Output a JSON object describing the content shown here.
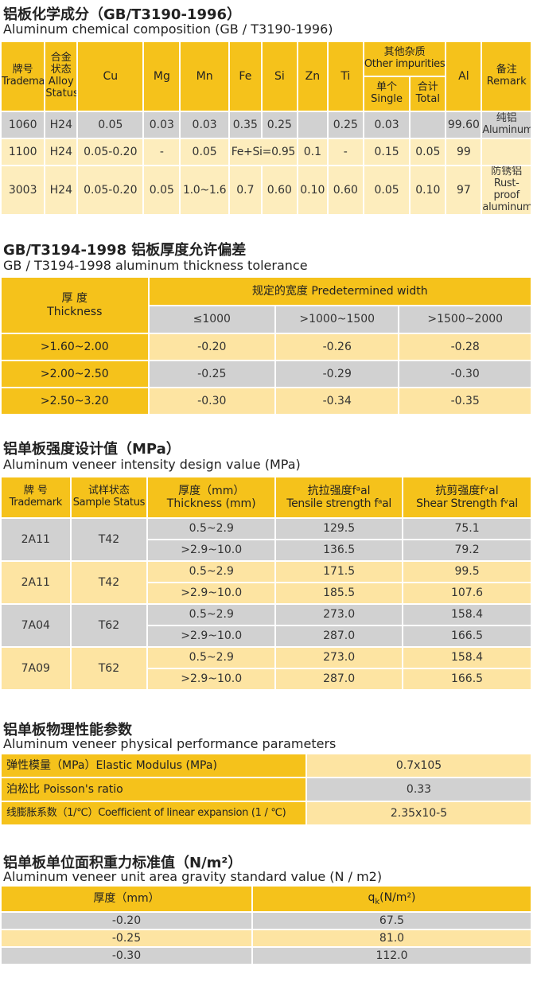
{
  "s1": {
    "title": "铝板化学成分（GB/T3190-1996）",
    "subtitle": "Aluminum chemical composition (GB / T3190-1996)",
    "h": {
      "trademark_cn": "牌号",
      "trademark_en": "Trademark",
      "alloy_cn": "合金状态",
      "alloy_en": "Alloy Status",
      "cu": "Cu",
      "mg": "Mg",
      "mn": "Mn",
      "fe": "Fe",
      "si": "Si",
      "zn": "Zn",
      "ti": "Ti",
      "other_cn": "其他杂质",
      "other_en": "Other impurities",
      "single_cn": "单个",
      "single_en": "Single",
      "total_cn": "合计",
      "total_en": "Total",
      "al": "Al",
      "remark_cn": "备注",
      "remark_en": "Remark"
    },
    "rows": [
      {
        "trademark": "1060",
        "status": "H24",
        "cu": "0.05",
        "mg": "0.03",
        "mn": "0.03",
        "fe": "0.35",
        "si": "0.25",
        "zn": "",
        "ti": "0.25",
        "single": "0.03",
        "total": "",
        "al": "99.60",
        "remark_cn": "纯铝",
        "remark_en": "Aluminum"
      },
      {
        "trademark": "1100",
        "status": "H24",
        "cu": "0.05-0.20",
        "mg": "-",
        "mn": "0.05",
        "fesi": "Fe+Si=0.95",
        "zn": "0.1",
        "ti": "-",
        "single": "0.15",
        "total": "0.05",
        "al": "99"
      },
      {
        "trademark": "3003",
        "status": "H24",
        "cu": "0.05-0.20",
        "mg": "0.05",
        "mn": "1.0~1.6",
        "fe": "0.7",
        "si": "0.60",
        "zn": "0.10",
        "ti": "0.60",
        "single": "0.05",
        "total": "0.10",
        "al": "97",
        "remark_cn": "防锈铝",
        "remark_en": "Rust-proof aluminum"
      }
    ]
  },
  "s2": {
    "title": "GB/T3194-1998 铝板厚度允许偏差",
    "subtitle": "GB / T3194-1998 aluminum thickness tolerance",
    "h": {
      "thickness_cn": "厚  度",
      "thickness_en": "Thickness",
      "width": "规定的宽度 Predetermined width",
      "w1": "≤1000",
      "w2": ">1000~1500",
      "w3": ">1500~2000"
    },
    "rows": [
      {
        "range": ">1.60~2.00",
        "v1": "-0.20",
        "v2": "-0.26",
        "v3": "-0.28"
      },
      {
        "range": ">2.00~2.50",
        "v1": "-0.25",
        "v2": "-0.29",
        "v3": "-0.30"
      },
      {
        "range": ">2.50~3.20",
        "v1": "-0.30",
        "v2": "-0.34",
        "v3": "-0.35"
      }
    ]
  },
  "s3": {
    "title": "铝单板强度设计值（MPa）",
    "subtitle": "Aluminum veneer intensity design value (MPa)",
    "h": {
      "trademark_cn": "牌 号",
      "trademark_en": "Trademark",
      "status_cn": "试样状态",
      "status_en": "Sample Status",
      "thick_cn": "厚度（mm）",
      "thick_en": "Thickness (mm)",
      "tensile_cn": "抗拉强度fᵃal",
      "tensile_en": "Tensile strength fᵃal",
      "shear_cn": "抗剪强度fᵛal",
      "shear_en": "Shear Strength fᵛal"
    },
    "groups": [
      {
        "trademark": "2A11",
        "status": "T42",
        "rows": [
          {
            "thick": "0.5~2.9",
            "tensile": "129.5",
            "shear": "75.1"
          },
          {
            "thick": ">2.9~10.0",
            "tensile": "136.5",
            "shear": "79.2"
          }
        ]
      },
      {
        "trademark": "2A11",
        "status": "T42",
        "rows": [
          {
            "thick": "0.5~2.9",
            "tensile": "171.5",
            "shear": "99.5"
          },
          {
            "thick": ">2.9~10.0",
            "tensile": "185.5",
            "shear": "107.6"
          }
        ]
      },
      {
        "trademark": "7A04",
        "status": "T62",
        "rows": [
          {
            "thick": "0.5~2.9",
            "tensile": "273.0",
            "shear": "158.4"
          },
          {
            "thick": ">2.9~10.0",
            "tensile": "287.0",
            "shear": "166.5"
          }
        ]
      },
      {
        "trademark": "7A09",
        "status": "T62",
        "rows": [
          {
            "thick": "0.5~2.9",
            "tensile": "273.0",
            "shear": "158.4"
          },
          {
            "thick": ">2.9~10.0",
            "tensile": "287.0",
            "shear": "166.5"
          }
        ]
      }
    ]
  },
  "s4": {
    "title": "铝单板物理性能参数",
    "subtitle": "Aluminum veneer physical performance parameters",
    "rows": [
      {
        "label": "弹性模量（MPa）Elastic Modulus (MPa)",
        "value": "0.7x105"
      },
      {
        "label": "泊松比  Poisson's ratio",
        "value": "0.33"
      },
      {
        "label": "线膨胀系数（1/℃）Coefficient of linear expansion (1 / ℃)",
        "value": "2.35x10-5"
      }
    ]
  },
  "s5": {
    "title": "铝单板单位面积重力标准值（N/m²）",
    "subtitle": "Aluminum veneer unit area gravity standard value (N / m2)",
    "h": {
      "thickness": "厚度（mm）",
      "qk_base": "q",
      "qk_sub": "k",
      "qk_unit": "(N/m²)"
    },
    "rows": [
      {
        "thickness": "-0.20",
        "value": "67.5"
      },
      {
        "thickness": "-0.25",
        "value": "81.0"
      },
      {
        "thickness": "-0.30",
        "value": "112.0"
      }
    ]
  }
}
